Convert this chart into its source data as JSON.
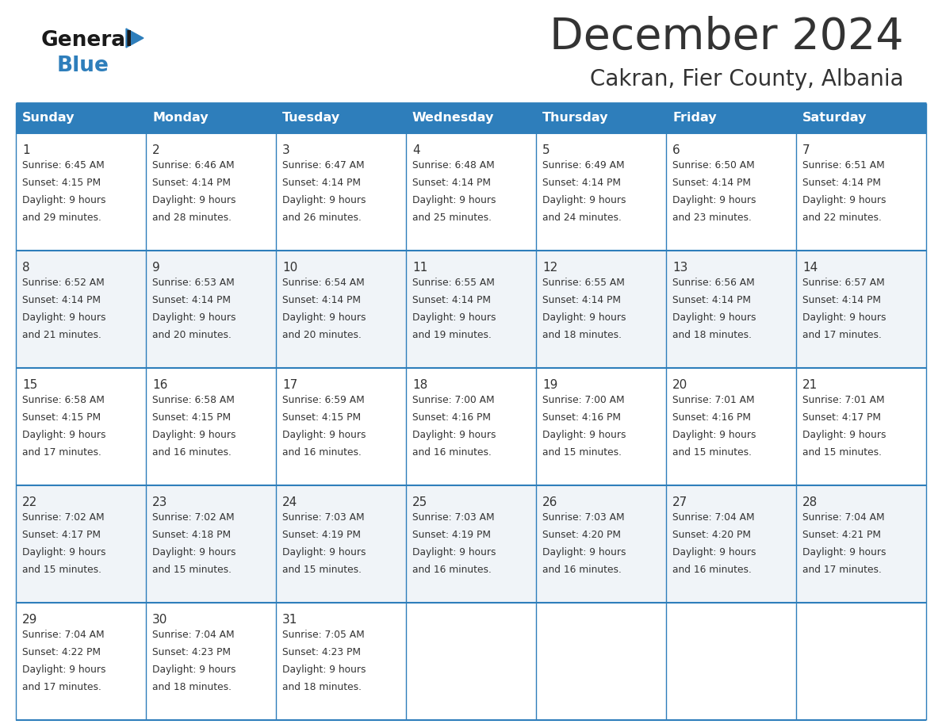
{
  "title": "December 2024",
  "subtitle": "Cakran, Fier County, Albania",
  "header_color": "#2E7EBB",
  "header_text_color": "#FFFFFF",
  "border_color": "#2E7EBB",
  "bg_color": "#FFFFFF",
  "row_alt_color": "#F0F4F8",
  "text_color": "#333333",
  "days_of_week": [
    "Sunday",
    "Monday",
    "Tuesday",
    "Wednesday",
    "Thursday",
    "Friday",
    "Saturday"
  ],
  "calendar_data": [
    [
      {
        "day": "1",
        "sunrise": "6:45 AM",
        "sunset": "4:15 PM",
        "daylight_line1": "Daylight: 9 hours",
        "daylight_line2": "and 29 minutes."
      },
      {
        "day": "2",
        "sunrise": "6:46 AM",
        "sunset": "4:14 PM",
        "daylight_line1": "Daylight: 9 hours",
        "daylight_line2": "and 28 minutes."
      },
      {
        "day": "3",
        "sunrise": "6:47 AM",
        "sunset": "4:14 PM",
        "daylight_line1": "Daylight: 9 hours",
        "daylight_line2": "and 26 minutes."
      },
      {
        "day": "4",
        "sunrise": "6:48 AM",
        "sunset": "4:14 PM",
        "daylight_line1": "Daylight: 9 hours",
        "daylight_line2": "and 25 minutes."
      },
      {
        "day": "5",
        "sunrise": "6:49 AM",
        "sunset": "4:14 PM",
        "daylight_line1": "Daylight: 9 hours",
        "daylight_line2": "and 24 minutes."
      },
      {
        "day": "6",
        "sunrise": "6:50 AM",
        "sunset": "4:14 PM",
        "daylight_line1": "Daylight: 9 hours",
        "daylight_line2": "and 23 minutes."
      },
      {
        "day": "7",
        "sunrise": "6:51 AM",
        "sunset": "4:14 PM",
        "daylight_line1": "Daylight: 9 hours",
        "daylight_line2": "and 22 minutes."
      }
    ],
    [
      {
        "day": "8",
        "sunrise": "6:52 AM",
        "sunset": "4:14 PM",
        "daylight_line1": "Daylight: 9 hours",
        "daylight_line2": "and 21 minutes."
      },
      {
        "day": "9",
        "sunrise": "6:53 AM",
        "sunset": "4:14 PM",
        "daylight_line1": "Daylight: 9 hours",
        "daylight_line2": "and 20 minutes."
      },
      {
        "day": "10",
        "sunrise": "6:54 AM",
        "sunset": "4:14 PM",
        "daylight_line1": "Daylight: 9 hours",
        "daylight_line2": "and 20 minutes."
      },
      {
        "day": "11",
        "sunrise": "6:55 AM",
        "sunset": "4:14 PM",
        "daylight_line1": "Daylight: 9 hours",
        "daylight_line2": "and 19 minutes."
      },
      {
        "day": "12",
        "sunrise": "6:55 AM",
        "sunset": "4:14 PM",
        "daylight_line1": "Daylight: 9 hours",
        "daylight_line2": "and 18 minutes."
      },
      {
        "day": "13",
        "sunrise": "6:56 AM",
        "sunset": "4:14 PM",
        "daylight_line1": "Daylight: 9 hours",
        "daylight_line2": "and 18 minutes."
      },
      {
        "day": "14",
        "sunrise": "6:57 AM",
        "sunset": "4:14 PM",
        "daylight_line1": "Daylight: 9 hours",
        "daylight_line2": "and 17 minutes."
      }
    ],
    [
      {
        "day": "15",
        "sunrise": "6:58 AM",
        "sunset": "4:15 PM",
        "daylight_line1": "Daylight: 9 hours",
        "daylight_line2": "and 17 minutes."
      },
      {
        "day": "16",
        "sunrise": "6:58 AM",
        "sunset": "4:15 PM",
        "daylight_line1": "Daylight: 9 hours",
        "daylight_line2": "and 16 minutes."
      },
      {
        "day": "17",
        "sunrise": "6:59 AM",
        "sunset": "4:15 PM",
        "daylight_line1": "Daylight: 9 hours",
        "daylight_line2": "and 16 minutes."
      },
      {
        "day": "18",
        "sunrise": "7:00 AM",
        "sunset": "4:16 PM",
        "daylight_line1": "Daylight: 9 hours",
        "daylight_line2": "and 16 minutes."
      },
      {
        "day": "19",
        "sunrise": "7:00 AM",
        "sunset": "4:16 PM",
        "daylight_line1": "Daylight: 9 hours",
        "daylight_line2": "and 15 minutes."
      },
      {
        "day": "20",
        "sunrise": "7:01 AM",
        "sunset": "4:16 PM",
        "daylight_line1": "Daylight: 9 hours",
        "daylight_line2": "and 15 minutes."
      },
      {
        "day": "21",
        "sunrise": "7:01 AM",
        "sunset": "4:17 PM",
        "daylight_line1": "Daylight: 9 hours",
        "daylight_line2": "and 15 minutes."
      }
    ],
    [
      {
        "day": "22",
        "sunrise": "7:02 AM",
        "sunset": "4:17 PM",
        "daylight_line1": "Daylight: 9 hours",
        "daylight_line2": "and 15 minutes."
      },
      {
        "day": "23",
        "sunrise": "7:02 AM",
        "sunset": "4:18 PM",
        "daylight_line1": "Daylight: 9 hours",
        "daylight_line2": "and 15 minutes."
      },
      {
        "day": "24",
        "sunrise": "7:03 AM",
        "sunset": "4:19 PM",
        "daylight_line1": "Daylight: 9 hours",
        "daylight_line2": "and 15 minutes."
      },
      {
        "day": "25",
        "sunrise": "7:03 AM",
        "sunset": "4:19 PM",
        "daylight_line1": "Daylight: 9 hours",
        "daylight_line2": "and 16 minutes."
      },
      {
        "day": "26",
        "sunrise": "7:03 AM",
        "sunset": "4:20 PM",
        "daylight_line1": "Daylight: 9 hours",
        "daylight_line2": "and 16 minutes."
      },
      {
        "day": "27",
        "sunrise": "7:04 AM",
        "sunset": "4:20 PM",
        "daylight_line1": "Daylight: 9 hours",
        "daylight_line2": "and 16 minutes."
      },
      {
        "day": "28",
        "sunrise": "7:04 AM",
        "sunset": "4:21 PM",
        "daylight_line1": "Daylight: 9 hours",
        "daylight_line2": "and 17 minutes."
      }
    ],
    [
      {
        "day": "29",
        "sunrise": "7:04 AM",
        "sunset": "4:22 PM",
        "daylight_line1": "Daylight: 9 hours",
        "daylight_line2": "and 17 minutes."
      },
      {
        "day": "30",
        "sunrise": "7:04 AM",
        "sunset": "4:23 PM",
        "daylight_line1": "Daylight: 9 hours",
        "daylight_line2": "and 18 minutes."
      },
      {
        "day": "31",
        "sunrise": "7:05 AM",
        "sunset": "4:23 PM",
        "daylight_line1": "Daylight: 9 hours",
        "daylight_line2": "and 18 minutes."
      },
      null,
      null,
      null,
      null
    ]
  ],
  "logo_general_color": "#1a1a1a",
  "logo_blue_color": "#2E7EBB"
}
